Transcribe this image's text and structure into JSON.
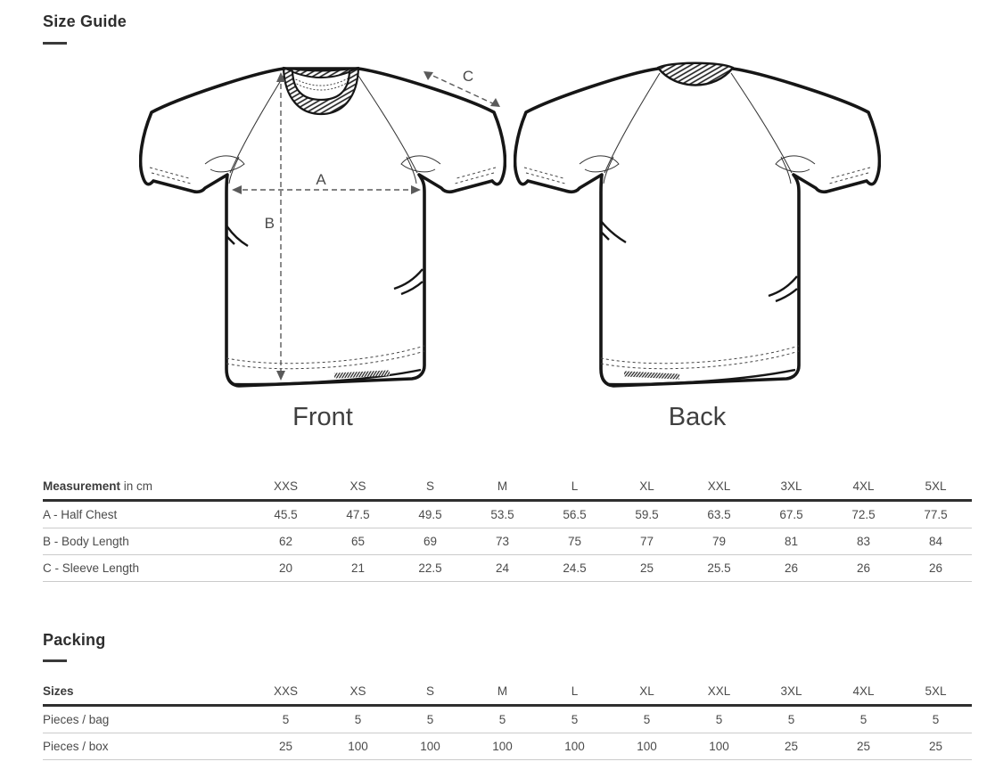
{
  "title": "Size Guide",
  "diagram": {
    "front_label": "Front",
    "back_label": "Back",
    "arrows": {
      "a": "A",
      "b": "B",
      "c": "C"
    }
  },
  "sizes": [
    "XXS",
    "XS",
    "S",
    "M",
    "L",
    "XL",
    "XXL",
    "3XL",
    "4XL",
    "5XL"
  ],
  "measurement_table": {
    "header_bold": "Measurement",
    "header_suffix": " in cm",
    "rows": [
      {
        "label": "A - Half Chest",
        "values": [
          "45.5",
          "47.5",
          "49.5",
          "53.5",
          "56.5",
          "59.5",
          "63.5",
          "67.5",
          "72.5",
          "77.5"
        ]
      },
      {
        "label": "B - Body Length",
        "values": [
          "62",
          "65",
          "69",
          "73",
          "75",
          "77",
          "79",
          "81",
          "83",
          "84"
        ]
      },
      {
        "label": "C - Sleeve Length",
        "values": [
          "20",
          "21",
          "22.5",
          "24",
          "24.5",
          "25",
          "25.5",
          "26",
          "26",
          "26"
        ]
      }
    ]
  },
  "packing": {
    "title": "Packing",
    "table": {
      "header_bold": "Sizes",
      "header_suffix": "",
      "rows": [
        {
          "label": "Pieces / bag",
          "values": [
            "5",
            "5",
            "5",
            "5",
            "5",
            "5",
            "5",
            "5",
            "5",
            "5"
          ]
        },
        {
          "label": "Pieces / box",
          "values": [
            "25",
            "100",
            "100",
            "100",
            "100",
            "100",
            "100",
            "25",
            "25",
            "25"
          ]
        }
      ]
    }
  }
}
